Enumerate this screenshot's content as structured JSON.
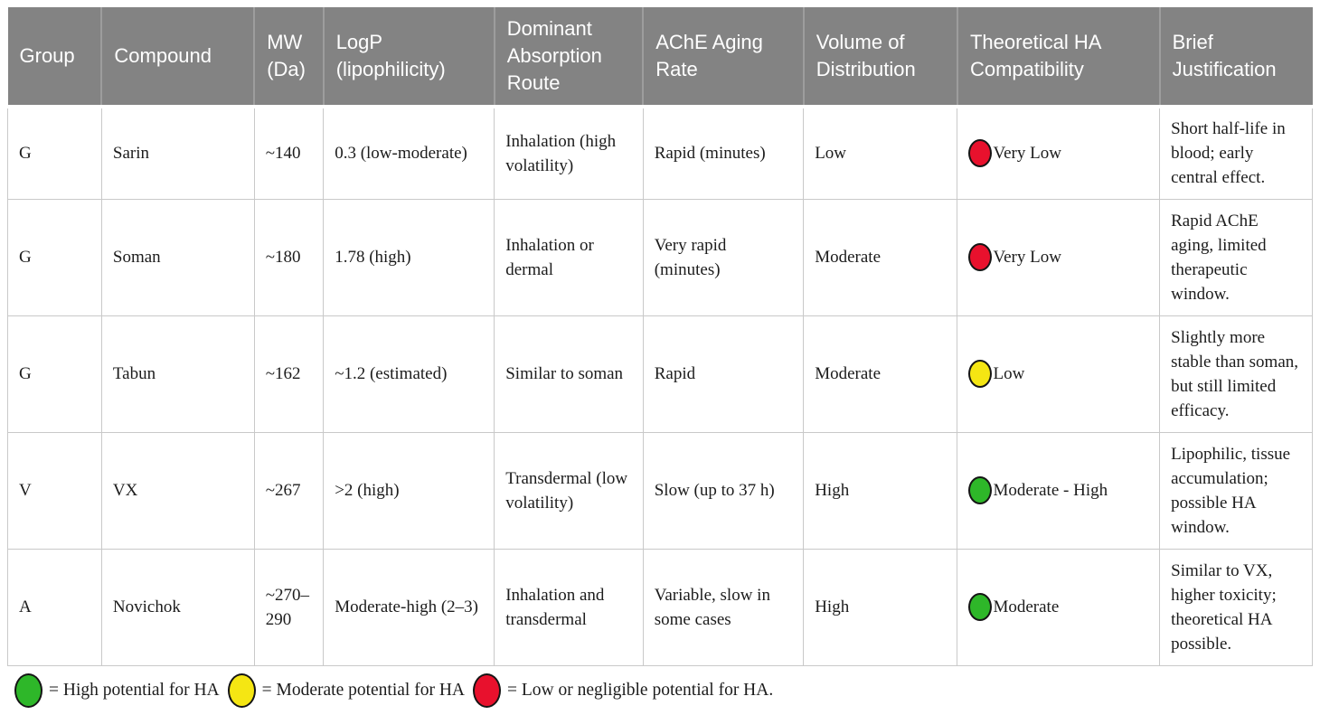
{
  "theme": {
    "header_background": "#838383",
    "header_divider": "#9d9d9d",
    "header_text": "#ffffff",
    "body_border": "#c9c9c9",
    "body_text": "#1c1c1c",
    "status_green": "#2eb729",
    "status_yellow": "#f5e613",
    "status_red": "#e8112d"
  },
  "table": {
    "columns": [
      {
        "id": "group",
        "label": "Group"
      },
      {
        "id": "compound",
        "label": "Compound"
      },
      {
        "id": "mw",
        "label": "MW (Da)"
      },
      {
        "id": "logp",
        "label": "LogP (lipophilicity)"
      },
      {
        "id": "route",
        "label": "Dominant Absorption Route"
      },
      {
        "id": "aging",
        "label": "AChE Aging Rate"
      },
      {
        "id": "vod",
        "label": "Volume of Distribution"
      },
      {
        "id": "ha",
        "label": "Theoretical HA Compatibility"
      },
      {
        "id": "brief",
        "label": "Brief Justification"
      }
    ],
    "rows": [
      {
        "group": "G",
        "compound": "Sarin",
        "mw": "~140",
        "logp": "0.3 (low-moderate)",
        "route": "Inhalation (high volatility)",
        "aging": "Rapid (minutes)",
        "vod": "Low",
        "ha": {
          "label": "Very Low",
          "level": "low-potential",
          "color": "#e8112d"
        },
        "justification": "Short half-life in blood; early central effect."
      },
      {
        "group": "G",
        "compound": "Soman",
        "mw": "~180",
        "logp": "1.78 (high)",
        "route": "Inhalation or dermal",
        "aging": "Very rapid (minutes)",
        "vod": "Moderate",
        "ha": {
          "label": "Very Low",
          "level": "low-potential",
          "color": "#e8112d"
        },
        "justification": "Rapid AChE aging, limited therapeutic window."
      },
      {
        "group": "G",
        "compound": "Tabun",
        "mw": "~162",
        "logp": "~1.2 (estimated)",
        "route": "Similar to soman",
        "aging": "Rapid",
        "vod": "Moderate",
        "ha": {
          "label": "Low",
          "level": "moderate-potential",
          "color": "#f5e613"
        },
        "justification": "Slightly more stable than soman, but still limited efficacy."
      },
      {
        "group": "V",
        "compound": "VX",
        "mw": "~267",
        "logp": ">2 (high)",
        "route": "Transdermal (low volatility)",
        "aging": "Slow (up to 37 h)",
        "vod": "High",
        "ha": {
          "label": "Moderate - High",
          "level": "high-potential",
          "color": "#2eb729"
        },
        "justification": "Lipophilic, tissue accumulation; possible HA window."
      },
      {
        "group": "A",
        "compound": "Novichok",
        "mw": "~270–290",
        "logp": "Moderate-high (2–3)",
        "route": "Inhalation and transdermal",
        "aging": "Variable, slow in some cases",
        "vod": "High",
        "ha": {
          "label": "Moderate",
          "level": "high-potential",
          "color": "#2eb729"
        },
        "justification": "Similar to VX, higher toxicity; theoretical HA possible."
      }
    ]
  },
  "legend": {
    "items": [
      {
        "label": "= High potential for HA",
        "color": "#2eb729"
      },
      {
        "label": "= Moderate potential for HA",
        "color": "#f5e613"
      },
      {
        "label": "= Low or negligible potential for HA.",
        "color": "#e8112d"
      }
    ]
  }
}
